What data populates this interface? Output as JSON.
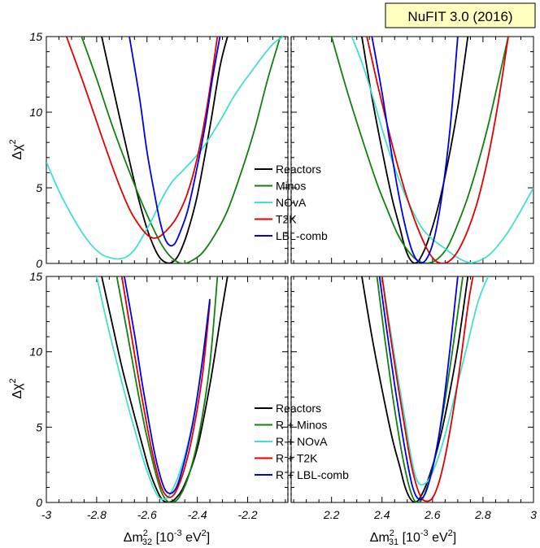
{
  "badge": {
    "text": "NuFIT 3.0 (2016)",
    "fill": "#ffffc0"
  },
  "axes": {
    "ylabel": "Δχ",
    "ylabel_sup": "2",
    "xlabel_left": {
      "main": "Δm",
      "sup": "2",
      "sub": "32",
      "unit": " [10",
      "unit_sup": "-3",
      "unit_end": " eV",
      "unit_sup2": "2",
      "close": "]"
    },
    "xlabel_right": {
      "main": "Δm",
      "sup": "2",
      "sub": "31",
      "unit": " [10",
      "unit_sup": "-3",
      "unit_end": " eV",
      "unit_sup2": "2",
      "close": "]"
    },
    "ylim": [
      0,
      15
    ],
    "yticks": [
      0,
      5,
      10,
      15
    ],
    "xlim_left": [
      -3.0,
      -2.04
    ],
    "xticks_left": [
      -3.0,
      -2.8,
      -2.6,
      -2.4,
      -2.2
    ],
    "xticklabels_left": [
      "-3",
      "-2.8",
      "-2.6",
      "-2.4",
      "-2.2"
    ],
    "xlim_right": [
      2.04,
      3.0
    ],
    "xticks_right": [
      2.2,
      2.4,
      2.6,
      2.8,
      3.0
    ],
    "xticklabels_right": [
      "2.2",
      "2.4",
      "2.6",
      "2.8",
      "3"
    ]
  },
  "chart_data": [
    {
      "type": "line",
      "panel": "top",
      "legend_position": "center",
      "series": [
        {
          "name": "Reactors",
          "color": "#000000",
          "left": {
            "x": [
              -2.78,
              -2.7,
              -2.64,
              -2.6,
              -2.57,
              -2.55,
              -2.53,
              -2.51,
              -2.49,
              -2.47,
              -2.44,
              -2.4,
              -2.35,
              -2.31,
              -2.28
            ],
            "y": [
              15,
              9,
              4.7,
              2.3,
              1.0,
              0.4,
              0.1,
              0.02,
              0.2,
              0.7,
              2.0,
              4.5,
              9.0,
              13.0,
              15
            ]
          },
          "right": {
            "x": [
              2.32,
              2.36,
              2.4,
              2.44,
              2.47,
              2.49,
              2.51,
              2.53,
              2.55,
              2.58,
              2.62,
              2.66,
              2.7,
              2.74
            ],
            "y": [
              15,
              11,
              7.5,
              4.3,
              2.4,
              1.1,
              0.3,
              0.02,
              0.3,
              1.4,
              3.6,
              6.6,
              10.3,
              15
            ]
          }
        },
        {
          "name": "Minos",
          "color": "#108010",
          "left": {
            "x": [
              -2.86,
              -2.8,
              -2.74,
              -2.68,
              -2.62,
              -2.56,
              -2.52,
              -2.48,
              -2.45,
              -2.42,
              -2.38,
              -2.33,
              -2.28,
              -2.22,
              -2.17,
              -2.12,
              -2.07
            ],
            "y": [
              15,
              12.2,
              9.2,
              6.5,
              4.0,
              1.8,
              0.7,
              0.1,
              0.0,
              0.2,
              0.7,
              1.9,
              3.5,
              6.3,
              9.0,
              12.2,
              15
            ]
          },
          "right": {
            "x": [
              2.2,
              2.26,
              2.32,
              2.38,
              2.42,
              2.46,
              2.5,
              2.54,
              2.58,
              2.62,
              2.66,
              2.7,
              2.74,
              2.78,
              2.82,
              2.86,
              2.9
            ],
            "y": [
              15,
              11.5,
              8.3,
              5.3,
              3.6,
              2.0,
              0.9,
              0.2,
              0.02,
              0.3,
              1.1,
              2.6,
              4.4,
              6.6,
              9.1,
              12.0,
              15
            ]
          }
        },
        {
          "name": "NOvA",
          "color": "#40e0d0",
          "left": {
            "x": [
              -3.0,
              -2.95,
              -2.9,
              -2.86,
              -2.82,
              -2.78,
              -2.74,
              -2.71,
              -2.68,
              -2.65,
              -2.62,
              -2.58,
              -2.54,
              -2.5,
              -2.46,
              -2.42,
              -2.38,
              -2.34,
              -2.3,
              -2.26,
              -2.22,
              -2.18,
              -2.14,
              -2.1,
              -2.06
            ],
            "y": [
              6.7,
              4.8,
              3.2,
              2.1,
              1.2,
              0.6,
              0.35,
              0.3,
              0.45,
              0.9,
              1.7,
              2.9,
              4.3,
              5.4,
              6.1,
              6.8,
              7.6,
              8.6,
              9.7,
              10.9,
              11.9,
              12.8,
              13.7,
              14.5,
              15
            ]
          },
          "right": {
            "x": [
              2.28,
              2.32,
              2.36,
              2.4,
              2.44,
              2.48,
              2.52,
              2.56,
              2.6,
              2.64,
              2.68,
              2.72,
              2.75,
              2.78,
              2.82,
              2.86,
              2.9,
              2.94,
              2.98,
              3.0
            ],
            "y": [
              15,
              13.3,
              11.2,
              8.9,
              6.8,
              5.0,
              3.5,
              2.3,
              1.6,
              1.1,
              0.6,
              0.2,
              0.05,
              0.15,
              0.5,
              1.2,
              2.1,
              3.2,
              4.4,
              5.0
            ]
          }
        },
        {
          "name": "T2K",
          "color": "#e00000",
          "left": {
            "x": [
              -2.92,
              -2.85,
              -2.78,
              -2.72,
              -2.67,
              -2.63,
              -2.6,
              -2.58,
              -2.56,
              -2.54,
              -2.51,
              -2.48,
              -2.44,
              -2.4,
              -2.36,
              -2.32
            ],
            "y": [
              15,
              11.8,
              8.4,
              5.6,
              3.6,
              2.5,
              1.9,
              1.7,
              1.7,
              1.9,
              2.4,
              3.1,
              4.6,
              7.0,
              10.5,
              15
            ]
          },
          "right": {
            "x": [
              2.34,
              2.38,
              2.42,
              2.46,
              2.5,
              2.54,
              2.58,
              2.61,
              2.64,
              2.67,
              2.7,
              2.74,
              2.78,
              2.82,
              2.86,
              2.9
            ],
            "y": [
              15,
              12.0,
              9.2,
              6.6,
              4.3,
              2.4,
              0.9,
              0.2,
              0.0,
              0.2,
              0.8,
              2.2,
              4.2,
              7.0,
              10.6,
              15
            ]
          }
        },
        {
          "name": "LBL-comb",
          "color": "#0000e0",
          "left": {
            "x": [
              -2.67,
              -2.63,
              -2.6,
              -2.57,
              -2.55,
              -2.53,
              -2.51,
              -2.49,
              -2.47,
              -2.44,
              -2.41,
              -2.37,
              -2.34,
              -2.31
            ],
            "y": [
              15,
              11.0,
              7.4,
              4.6,
              2.9,
              1.7,
              1.2,
              1.3,
              2.0,
              3.4,
              5.6,
              9.0,
              12.2,
              15
            ]
          },
          "right": {
            "x": [
              2.36,
              2.4,
              2.43,
              2.46,
              2.49,
              2.52,
              2.55,
              2.58,
              2.61,
              2.64,
              2.67,
              2.7
            ],
            "y": [
              15,
              11.3,
              8.1,
              5.1,
              2.6,
              0.8,
              0.05,
              0.4,
              1.9,
              4.8,
              9.0,
              15
            ]
          }
        }
      ]
    },
    {
      "type": "line",
      "panel": "bottom",
      "legend_position": "lower-center",
      "series": [
        {
          "name": "Reactors",
          "color": "#000000",
          "left": {
            "x": [
              -2.78,
              -2.74,
              -2.7,
              -2.66,
              -2.62,
              -2.59,
              -2.56,
              -2.54,
              -2.52,
              -2.49,
              -2.45,
              -2.4,
              -2.35,
              -2.31,
              -2.28
            ],
            "y": [
              15,
              12.0,
              9.0,
              6.4,
              3.9,
              2.1,
              0.8,
              0.2,
              0.02,
              0.2,
              1.2,
              3.6,
              7.8,
              12.0,
              15
            ]
          },
          "right": {
            "x": [
              2.32,
              2.36,
              2.4,
              2.44,
              2.47,
              2.49,
              2.51,
              2.53,
              2.55,
              2.58,
              2.62,
              2.66,
              2.7,
              2.74
            ],
            "y": [
              15,
              11,
              7.5,
              4.3,
              2.4,
              1.1,
              0.3,
              0.02,
              0.3,
              1.4,
              3.6,
              6.6,
              10.3,
              15
            ]
          }
        },
        {
          "name": "R + Minos",
          "color": "#108010",
          "left": {
            "x": [
              -2.72,
              -2.68,
              -2.64,
              -2.61,
              -2.58,
              -2.56,
              -2.54,
              -2.52,
              -2.5,
              -2.47,
              -2.43,
              -2.39,
              -2.35,
              -2.32
            ],
            "y": [
              15,
              11.4,
              7.7,
              5.1,
              2.9,
              1.6,
              0.6,
              0.1,
              0.0,
              0.4,
              2.0,
              4.8,
              9.2,
              15
            ]
          },
          "right": {
            "x": [
              2.38,
              2.41,
              2.44,
              2.47,
              2.49,
              2.51,
              2.53,
              2.55,
              2.57,
              2.6,
              2.64,
              2.68,
              2.72
            ],
            "y": [
              15,
              11.0,
              7.3,
              4.1,
              2.3,
              0.9,
              0.1,
              0.05,
              0.6,
              2.3,
              5.8,
              10.2,
              15
            ]
          }
        },
        {
          "name": "R + NOvA",
          "color": "#40e0d0",
          "left": {
            "x": [
              -2.8,
              -2.76,
              -2.72,
              -2.68,
              -2.64,
              -2.61,
              -2.58,
              -2.56,
              -2.54,
              -2.52,
              -2.5,
              -2.47,
              -2.43,
              -2.39,
              -2.35
            ],
            "y": [
              15,
              12.0,
              9.3,
              6.7,
              4.3,
              2.6,
              1.2,
              0.5,
              0.2,
              0.3,
              0.8,
              2.0,
              4.4,
              8.1,
              13.5
            ]
          },
          "right": {
            "x": [
              2.4,
              2.43,
              2.46,
              2.49,
              2.51,
              2.53,
              2.55,
              2.58,
              2.61,
              2.64,
              2.67,
              2.7,
              2.74,
              2.78,
              2.82
            ],
            "y": [
              15,
              11.8,
              8.6,
              5.6,
              3.5,
              1.9,
              1.2,
              1.4,
              2.4,
              3.9,
              5.8,
              7.9,
              10.6,
              13.3,
              15
            ]
          }
        },
        {
          "name": "R + T2K",
          "color": "#e00000",
          "left": {
            "x": [
              -2.7,
              -2.66,
              -2.63,
              -2.6,
              -2.58,
              -2.56,
              -2.54,
              -2.52,
              -2.5,
              -2.48,
              -2.45,
              -2.42,
              -2.38,
              -2.35
            ],
            "y": [
              15,
              10.9,
              7.9,
              5.1,
              3.4,
              2.0,
              0.9,
              0.4,
              0.4,
              0.9,
              2.3,
              4.4,
              8.4,
              13.3
            ]
          },
          "right": {
            "x": [
              2.4,
              2.43,
              2.46,
              2.49,
              2.51,
              2.53,
              2.55,
              2.57,
              2.6,
              2.63,
              2.66,
              2.7,
              2.74,
              2.76
            ],
            "y": [
              15,
              11.4,
              8.1,
              5.0,
              3.0,
              1.5,
              0.5,
              0.1,
              0.3,
              1.6,
              3.9,
              8.0,
              13.0,
              15
            ]
          }
        },
        {
          "name": "R + LBL-comb",
          "color": "#0000e0",
          "left": {
            "x": [
              -2.69,
              -2.65,
              -2.62,
              -2.59,
              -2.57,
              -2.55,
              -2.53,
              -2.51,
              -2.49,
              -2.47,
              -2.44,
              -2.41,
              -2.38,
              -2.35
            ],
            "y": [
              15,
              11.2,
              8.0,
              5.1,
              3.3,
              1.9,
              0.9,
              0.6,
              0.8,
              1.6,
              3.5,
              6.0,
              9.4,
              13.5
            ]
          },
          "right": {
            "x": [
              2.39,
              2.42,
              2.45,
              2.48,
              2.5,
              2.52,
              2.54,
              2.56,
              2.58,
              2.61,
              2.64,
              2.67,
              2.7
            ],
            "y": [
              15,
              11.3,
              7.8,
              4.6,
              2.7,
              1.1,
              0.3,
              0.3,
              1.0,
              3.0,
              6.1,
              10.3,
              15
            ]
          }
        }
      ]
    }
  ]
}
